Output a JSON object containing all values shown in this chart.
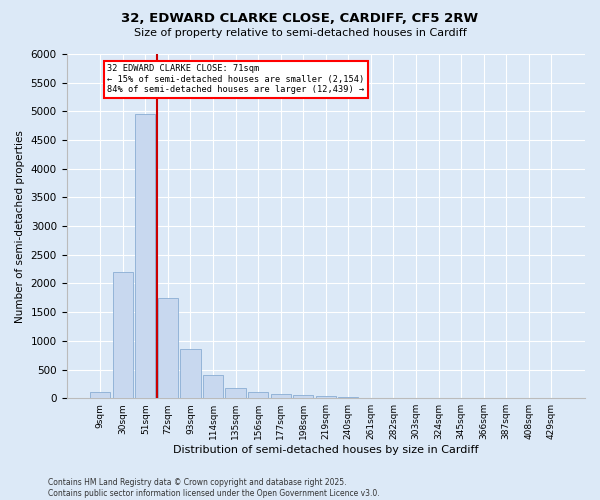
{
  "title_line1": "32, EDWARD CLARKE CLOSE, CARDIFF, CF5 2RW",
  "title_line2": "Size of property relative to semi-detached houses in Cardiff",
  "xlabel": "Distribution of semi-detached houses by size in Cardiff",
  "ylabel": "Number of semi-detached properties",
  "footnote": "Contains HM Land Registry data © Crown copyright and database right 2025.\nContains public sector information licensed under the Open Government Licence v3.0.",
  "bin_labels": [
    "9sqm",
    "30sqm",
    "51sqm",
    "72sqm",
    "93sqm",
    "114sqm",
    "135sqm",
    "156sqm",
    "177sqm",
    "198sqm",
    "219sqm",
    "240sqm",
    "261sqm",
    "282sqm",
    "303sqm",
    "324sqm",
    "345sqm",
    "366sqm",
    "387sqm",
    "408sqm",
    "429sqm"
  ],
  "bar_values": [
    100,
    2200,
    4950,
    1750,
    850,
    400,
    170,
    100,
    70,
    60,
    30,
    15,
    10,
    8,
    5,
    3,
    2,
    1,
    1,
    0,
    0
  ],
  "bar_color": "#c8d8ef",
  "bar_edge_color": "#8aadd4",
  "property_sqm": 71,
  "property_label": "32 EDWARD CLARKE CLOSE: 71sqm",
  "pct_smaller": 15,
  "count_smaller": 2154,
  "pct_larger": 84,
  "count_larger": 12439,
  "annotation_box_color": "#ff0000",
  "vline_color": "#cc0000",
  "ylim": [
    0,
    6000
  ],
  "yticks": [
    0,
    500,
    1000,
    1500,
    2000,
    2500,
    3000,
    3500,
    4000,
    4500,
    5000,
    5500,
    6000
  ],
  "grid_color": "#ffffff",
  "bg_color": "#dce9f7",
  "plot_bg_color": "#dce9f7"
}
